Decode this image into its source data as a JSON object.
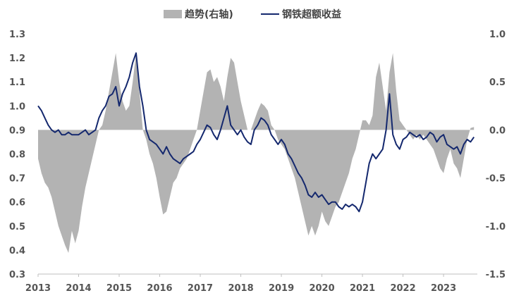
{
  "colors": {
    "area": "#b3b3b3",
    "line": "#14286e",
    "axis": "#bfbfbf",
    "text": "#555555"
  },
  "legend": {
    "area_label": "趋势(右轴)",
    "line_label": "钢铁超额收益"
  },
  "chart_data": {
    "type": "line",
    "title": "",
    "xlabel": "",
    "ylabel": "",
    "x_tick_labels": [
      "2013",
      "2014",
      "2015",
      "2016",
      "2017",
      "2018",
      "2019",
      "2020",
      "2021",
      "2022",
      "2023"
    ],
    "x_range": [
      "2013-01",
      "2023-10"
    ],
    "ylim_left": [
      0.3,
      1.3
    ],
    "ylim_right": [
      -1.5,
      1.0
    ],
    "left_ticks": [
      "0.3",
      "0.4",
      "0.5",
      "0.6",
      "0.7",
      "0.8",
      "0.9",
      "1.0",
      "1.1",
      "1.2",
      "1.3"
    ],
    "right_ticks": [
      "-1.5",
      "-1.0",
      "-0.5",
      "0.0",
      "0.5",
      "1.0"
    ],
    "legend_position": "top-center",
    "grid": false,
    "series": [
      {
        "name": "趋势(右轴)",
        "type": "area",
        "axis": "right",
        "points": [
          [
            "2013-01",
            -0.3
          ],
          [
            "2013-02",
            -0.45
          ],
          [
            "2013-03",
            -0.55
          ],
          [
            "2013-04",
            -0.6
          ],
          [
            "2013-05",
            -0.7
          ],
          [
            "2013-06",
            -0.85
          ],
          [
            "2013-07",
            -1.0
          ],
          [
            "2013-08",
            -1.1
          ],
          [
            "2013-09",
            -1.2
          ],
          [
            "2013-10",
            -1.28
          ],
          [
            "2013-11",
            -1.05
          ],
          [
            "2013-12",
            -1.18
          ],
          [
            "2014-01",
            -1.05
          ],
          [
            "2014-02",
            -0.8
          ],
          [
            "2014-03",
            -0.6
          ],
          [
            "2014-04",
            -0.45
          ],
          [
            "2014-05",
            -0.3
          ],
          [
            "2014-06",
            -0.15
          ],
          [
            "2014-07",
            0.0
          ],
          [
            "2014-08",
            0.05
          ],
          [
            "2014-09",
            0.2
          ],
          [
            "2014-10",
            0.4
          ],
          [
            "2014-11",
            0.6
          ],
          [
            "2014-12",
            0.8
          ],
          [
            "2015-01",
            0.5
          ],
          [
            "2015-02",
            0.3
          ],
          [
            "2015-03",
            0.2
          ],
          [
            "2015-04",
            0.25
          ],
          [
            "2015-05",
            0.5
          ],
          [
            "2015-06",
            0.8
          ],
          [
            "2015-07",
            0.4
          ],
          [
            "2015-08",
            0.0
          ],
          [
            "2015-09",
            -0.1
          ],
          [
            "2015-10",
            -0.25
          ],
          [
            "2015-11",
            -0.35
          ],
          [
            "2015-12",
            -0.5
          ],
          [
            "2016-01",
            -0.7
          ],
          [
            "2016-02",
            -0.88
          ],
          [
            "2016-03",
            -0.85
          ],
          [
            "2016-04",
            -0.7
          ],
          [
            "2016-05",
            -0.55
          ],
          [
            "2016-06",
            -0.5
          ],
          [
            "2016-07",
            -0.4
          ],
          [
            "2016-08",
            -0.35
          ],
          [
            "2016-09",
            -0.3
          ],
          [
            "2016-10",
            -0.2
          ],
          [
            "2016-11",
            -0.1
          ],
          [
            "2016-12",
            0.0
          ],
          [
            "2017-01",
            0.2
          ],
          [
            "2017-02",
            0.4
          ],
          [
            "2017-03",
            0.6
          ],
          [
            "2017-04",
            0.63
          ],
          [
            "2017-05",
            0.5
          ],
          [
            "2017-06",
            0.55
          ],
          [
            "2017-07",
            0.45
          ],
          [
            "2017-08",
            0.3
          ],
          [
            "2017-09",
            0.55
          ],
          [
            "2017-10",
            0.75
          ],
          [
            "2017-11",
            0.7
          ],
          [
            "2017-12",
            0.5
          ],
          [
            "2018-01",
            0.3
          ],
          [
            "2018-02",
            0.15
          ],
          [
            "2018-03",
            0.0
          ],
          [
            "2018-04",
            0.0
          ],
          [
            "2018-05",
            0.1
          ],
          [
            "2018-06",
            0.2
          ],
          [
            "2018-07",
            0.28
          ],
          [
            "2018-08",
            0.25
          ],
          [
            "2018-09",
            0.2
          ],
          [
            "2018-10",
            0.05
          ],
          [
            "2018-11",
            0.0
          ],
          [
            "2018-12",
            -0.1
          ],
          [
            "2019-01",
            -0.15
          ],
          [
            "2019-02",
            -0.2
          ],
          [
            "2019-03",
            -0.3
          ],
          [
            "2019-04",
            -0.4
          ],
          [
            "2019-05",
            -0.5
          ],
          [
            "2019-06",
            -0.65
          ],
          [
            "2019-07",
            -0.8
          ],
          [
            "2019-08",
            -0.95
          ],
          [
            "2019-09",
            -1.1
          ],
          [
            "2019-10",
            -1.0
          ],
          [
            "2019-11",
            -1.1
          ],
          [
            "2019-12",
            -1.0
          ],
          [
            "2020-01",
            -0.85
          ],
          [
            "2020-02",
            -0.95
          ],
          [
            "2020-03",
            -1.0
          ],
          [
            "2020-04",
            -0.9
          ],
          [
            "2020-05",
            -0.8
          ],
          [
            "2020-06",
            -0.75
          ],
          [
            "2020-07",
            -0.65
          ],
          [
            "2020-08",
            -0.55
          ],
          [
            "2020-09",
            -0.45
          ],
          [
            "2020-10",
            -0.3
          ],
          [
            "2020-11",
            -0.2
          ],
          [
            "2020-12",
            -0.05
          ],
          [
            "2021-01",
            0.1
          ],
          [
            "2021-02",
            0.1
          ],
          [
            "2021-03",
            0.05
          ],
          [
            "2021-04",
            0.15
          ],
          [
            "2021-05",
            0.55
          ],
          [
            "2021-06",
            0.7
          ],
          [
            "2021-07",
            0.45
          ],
          [
            "2021-08",
            0.2
          ],
          [
            "2021-09",
            0.6
          ],
          [
            "2021-10",
            0.8
          ],
          [
            "2021-11",
            0.4
          ],
          [
            "2021-12",
            0.1
          ],
          [
            "2022-01",
            0.05
          ],
          [
            "2022-02",
            0.0
          ],
          [
            "2022-03",
            -0.05
          ],
          [
            "2022-04",
            -0.1
          ],
          [
            "2022-05",
            -0.05
          ],
          [
            "2022-06",
            -0.1
          ],
          [
            "2022-07",
            -0.05
          ],
          [
            "2022-08",
            -0.1
          ],
          [
            "2022-09",
            -0.15
          ],
          [
            "2022-10",
            -0.2
          ],
          [
            "2022-11",
            -0.3
          ],
          [
            "2022-12",
            -0.4
          ],
          [
            "2023-01",
            -0.45
          ],
          [
            "2023-02",
            -0.3
          ],
          [
            "2023-03",
            -0.2
          ],
          [
            "2023-04",
            -0.35
          ],
          [
            "2023-05",
            -0.4
          ],
          [
            "2023-06",
            -0.5
          ],
          [
            "2023-07",
            -0.3
          ],
          [
            "2023-08",
            -0.1
          ],
          [
            "2023-09",
            0.02
          ],
          [
            "2023-10",
            0.03
          ]
        ]
      },
      {
        "name": "钢铁超额收益",
        "type": "line",
        "axis": "left",
        "points": [
          [
            "2013-01",
            1.0
          ],
          [
            "2013-02",
            0.98
          ],
          [
            "2013-03",
            0.95
          ],
          [
            "2013-04",
            0.92
          ],
          [
            "2013-05",
            0.9
          ],
          [
            "2013-06",
            0.89
          ],
          [
            "2013-07",
            0.9
          ],
          [
            "2013-08",
            0.88
          ],
          [
            "2013-09",
            0.88
          ],
          [
            "2013-10",
            0.89
          ],
          [
            "2013-11",
            0.88
          ],
          [
            "2013-12",
            0.88
          ],
          [
            "2014-01",
            0.88
          ],
          [
            "2014-02",
            0.89
          ],
          [
            "2014-03",
            0.9
          ],
          [
            "2014-04",
            0.88
          ],
          [
            "2014-05",
            0.89
          ],
          [
            "2014-06",
            0.9
          ],
          [
            "2014-07",
            0.95
          ],
          [
            "2014-08",
            0.98
          ],
          [
            "2014-09",
            1.0
          ],
          [
            "2014-10",
            1.04
          ],
          [
            "2014-11",
            1.05
          ],
          [
            "2014-12",
            1.08
          ],
          [
            "2015-01",
            1.0
          ],
          [
            "2015-02",
            1.05
          ],
          [
            "2015-03",
            1.08
          ],
          [
            "2015-04",
            1.12
          ],
          [
            "2015-05",
            1.18
          ],
          [
            "2015-06",
            1.22
          ],
          [
            "2015-07",
            1.08
          ],
          [
            "2015-08",
            1.0
          ],
          [
            "2015-09",
            0.9
          ],
          [
            "2015-10",
            0.86
          ],
          [
            "2015-11",
            0.85
          ],
          [
            "2015-12",
            0.84
          ],
          [
            "2016-01",
            0.82
          ],
          [
            "2016-02",
            0.8
          ],
          [
            "2016-03",
            0.83
          ],
          [
            "2016-04",
            0.8
          ],
          [
            "2016-05",
            0.78
          ],
          [
            "2016-06",
            0.77
          ],
          [
            "2016-07",
            0.76
          ],
          [
            "2016-08",
            0.78
          ],
          [
            "2016-09",
            0.79
          ],
          [
            "2016-10",
            0.8
          ],
          [
            "2016-11",
            0.81
          ],
          [
            "2016-12",
            0.84
          ],
          [
            "2017-01",
            0.86
          ],
          [
            "2017-02",
            0.89
          ],
          [
            "2017-03",
            0.92
          ],
          [
            "2017-04",
            0.91
          ],
          [
            "2017-05",
            0.88
          ],
          [
            "2017-06",
            0.86
          ],
          [
            "2017-07",
            0.9
          ],
          [
            "2017-08",
            0.95
          ],
          [
            "2017-09",
            1.0
          ],
          [
            "2017-10",
            0.92
          ],
          [
            "2017-11",
            0.9
          ],
          [
            "2017-12",
            0.88
          ],
          [
            "2018-01",
            0.9
          ],
          [
            "2018-02",
            0.87
          ],
          [
            "2018-03",
            0.85
          ],
          [
            "2018-04",
            0.84
          ],
          [
            "2018-05",
            0.9
          ],
          [
            "2018-06",
            0.92
          ],
          [
            "2018-07",
            0.95
          ],
          [
            "2018-08",
            0.94
          ],
          [
            "2018-09",
            0.92
          ],
          [
            "2018-10",
            0.88
          ],
          [
            "2018-11",
            0.86
          ],
          [
            "2018-12",
            0.84
          ],
          [
            "2019-01",
            0.86
          ],
          [
            "2019-02",
            0.84
          ],
          [
            "2019-03",
            0.8
          ],
          [
            "2019-04",
            0.78
          ],
          [
            "2019-05",
            0.75
          ],
          [
            "2019-06",
            0.72
          ],
          [
            "2019-07",
            0.7
          ],
          [
            "2019-08",
            0.67
          ],
          [
            "2019-09",
            0.63
          ],
          [
            "2019-10",
            0.62
          ],
          [
            "2019-11",
            0.64
          ],
          [
            "2019-12",
            0.62
          ],
          [
            "2020-01",
            0.63
          ],
          [
            "2020-02",
            0.61
          ],
          [
            "2020-03",
            0.59
          ],
          [
            "2020-04",
            0.6
          ],
          [
            "2020-05",
            0.6
          ],
          [
            "2020-06",
            0.58
          ],
          [
            "2020-07",
            0.57
          ],
          [
            "2020-08",
            0.59
          ],
          [
            "2020-09",
            0.58
          ],
          [
            "2020-10",
            0.59
          ],
          [
            "2020-11",
            0.58
          ],
          [
            "2020-12",
            0.56
          ],
          [
            "2021-01",
            0.6
          ],
          [
            "2021-02",
            0.68
          ],
          [
            "2021-03",
            0.76
          ],
          [
            "2021-04",
            0.8
          ],
          [
            "2021-05",
            0.78
          ],
          [
            "2021-06",
            0.8
          ],
          [
            "2021-07",
            0.82
          ],
          [
            "2021-08",
            0.9
          ],
          [
            "2021-09",
            1.05
          ],
          [
            "2021-10",
            0.88
          ],
          [
            "2021-11",
            0.84
          ],
          [
            "2021-12",
            0.82
          ],
          [
            "2022-01",
            0.86
          ],
          [
            "2022-02",
            0.87
          ],
          [
            "2022-03",
            0.89
          ],
          [
            "2022-04",
            0.88
          ],
          [
            "2022-05",
            0.87
          ],
          [
            "2022-06",
            0.88
          ],
          [
            "2022-07",
            0.86
          ],
          [
            "2022-08",
            0.87
          ],
          [
            "2022-09",
            0.89
          ],
          [
            "2022-10",
            0.88
          ],
          [
            "2022-11",
            0.85
          ],
          [
            "2022-12",
            0.87
          ],
          [
            "2023-01",
            0.88
          ],
          [
            "2023-02",
            0.84
          ],
          [
            "2023-03",
            0.83
          ],
          [
            "2023-04",
            0.82
          ],
          [
            "2023-05",
            0.83
          ],
          [
            "2023-06",
            0.8
          ],
          [
            "2023-07",
            0.84
          ],
          [
            "2023-08",
            0.86
          ],
          [
            "2023-09",
            0.85
          ],
          [
            "2023-10",
            0.87
          ]
        ]
      }
    ]
  }
}
